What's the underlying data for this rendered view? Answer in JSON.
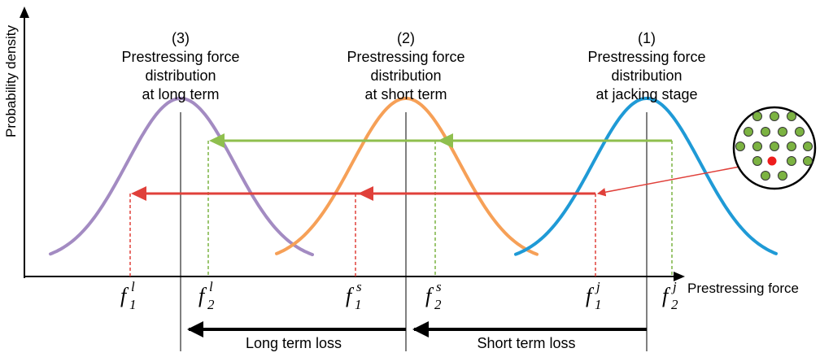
{
  "axes": {
    "y_label": "Probability density",
    "x_label": "Prestressing force"
  },
  "curves": [
    {
      "number": "(3)",
      "lines": [
        "Prestressing force",
        "distribution",
        "at long term"
      ],
      "color": "#a38bc2"
    },
    {
      "number": "(2)",
      "lines": [
        "Prestressing force",
        "distribution",
        "at short term"
      ],
      "color": "#f6a057"
    },
    {
      "number": "(1)",
      "lines": [
        "Prestressing force",
        "distribution",
        "at jacking stage"
      ],
      "color": "#1f9ad6"
    }
  ],
  "force_labels": [
    {
      "base": "f",
      "sub": "1",
      "sup": "l",
      "color": "#e0403a"
    },
    {
      "base": "f",
      "sub": "2",
      "sup": "l",
      "color": "#7cb342"
    },
    {
      "base": "f",
      "sub": "1",
      "sup": "s",
      "color": "#e0403a"
    },
    {
      "base": "f",
      "sub": "2",
      "sup": "s",
      "color": "#7cb342"
    },
    {
      "base": "f",
      "sub": "1",
      "sup": "j",
      "color": "#e0403a"
    },
    {
      "base": "f",
      "sub": "2",
      "sup": "j",
      "color": "#7cb342"
    }
  ],
  "losses": {
    "long": "Long term loss",
    "short": "Short term loss"
  },
  "colors": {
    "transfer_high": "#8fbf4e",
    "transfer_low": "#e0403a",
    "strand": "#7cb342",
    "strand_selected": "#ee1c1c"
  }
}
